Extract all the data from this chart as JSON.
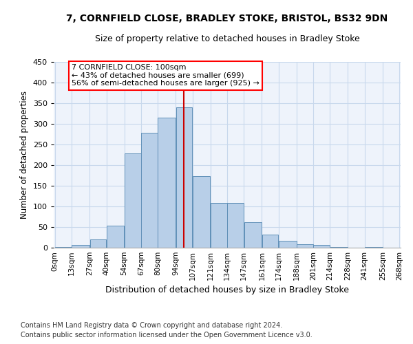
{
  "title1": "7, CORNFIELD CLOSE, BRADLEY STOKE, BRISTOL, BS32 9DN",
  "title2": "Size of property relative to detached houses in Bradley Stoke",
  "xlabel": "Distribution of detached houses by size in Bradley Stoke",
  "ylabel": "Number of detached properties",
  "footnote1": "Contains HM Land Registry data © Crown copyright and database right 2024.",
  "footnote2": "Contains public sector information licensed under the Open Government Licence v3.0.",
  "annotation_title": "7 CORNFIELD CLOSE: 100sqm",
  "annotation_line1": "← 43% of detached houses are smaller (699)",
  "annotation_line2": "56% of semi-detached houses are larger (925) →",
  "vline_x": 100,
  "bar_left_edges": [
    0,
    13,
    27,
    40,
    54,
    67,
    80,
    94,
    107,
    121,
    134,
    147,
    161,
    174,
    188,
    201,
    214,
    228,
    241,
    255
  ],
  "bar_widths": [
    13,
    14,
    13,
    14,
    13,
    13,
    14,
    13,
    14,
    13,
    13,
    14,
    13,
    14,
    13,
    13,
    14,
    13,
    14,
    13
  ],
  "bar_heights": [
    2,
    6,
    20,
    54,
    228,
    278,
    315,
    340,
    174,
    109,
    109,
    62,
    32,
    16,
    8,
    6,
    2,
    0,
    2,
    0
  ],
  "bar_color": "#b8cfe8",
  "bar_edge_color": "#6090b8",
  "vline_color": "#cc0000",
  "grid_color": "#c8d8ec",
  "background_color": "#eef3fb",
  "tick_labels": [
    "0sqm",
    "13sqm",
    "27sqm",
    "40sqm",
    "54sqm",
    "67sqm",
    "80sqm",
    "94sqm",
    "107sqm",
    "121sqm",
    "134sqm",
    "147sqm",
    "161sqm",
    "174sqm",
    "188sqm",
    "201sqm",
    "214sqm",
    "228sqm",
    "241sqm",
    "255sqm",
    "268sqm"
  ],
  "ylim": [
    0,
    450
  ],
  "yticks": [
    0,
    50,
    100,
    150,
    200,
    250,
    300,
    350,
    400,
    450
  ],
  "title1_fontsize": 10,
  "title2_fontsize": 9,
  "xlabel_fontsize": 9,
  "ylabel_fontsize": 8.5,
  "footnote_fontsize": 7,
  "annot_fontsize": 8,
  "xtick_fontsize": 7.5,
  "ytick_fontsize": 8
}
